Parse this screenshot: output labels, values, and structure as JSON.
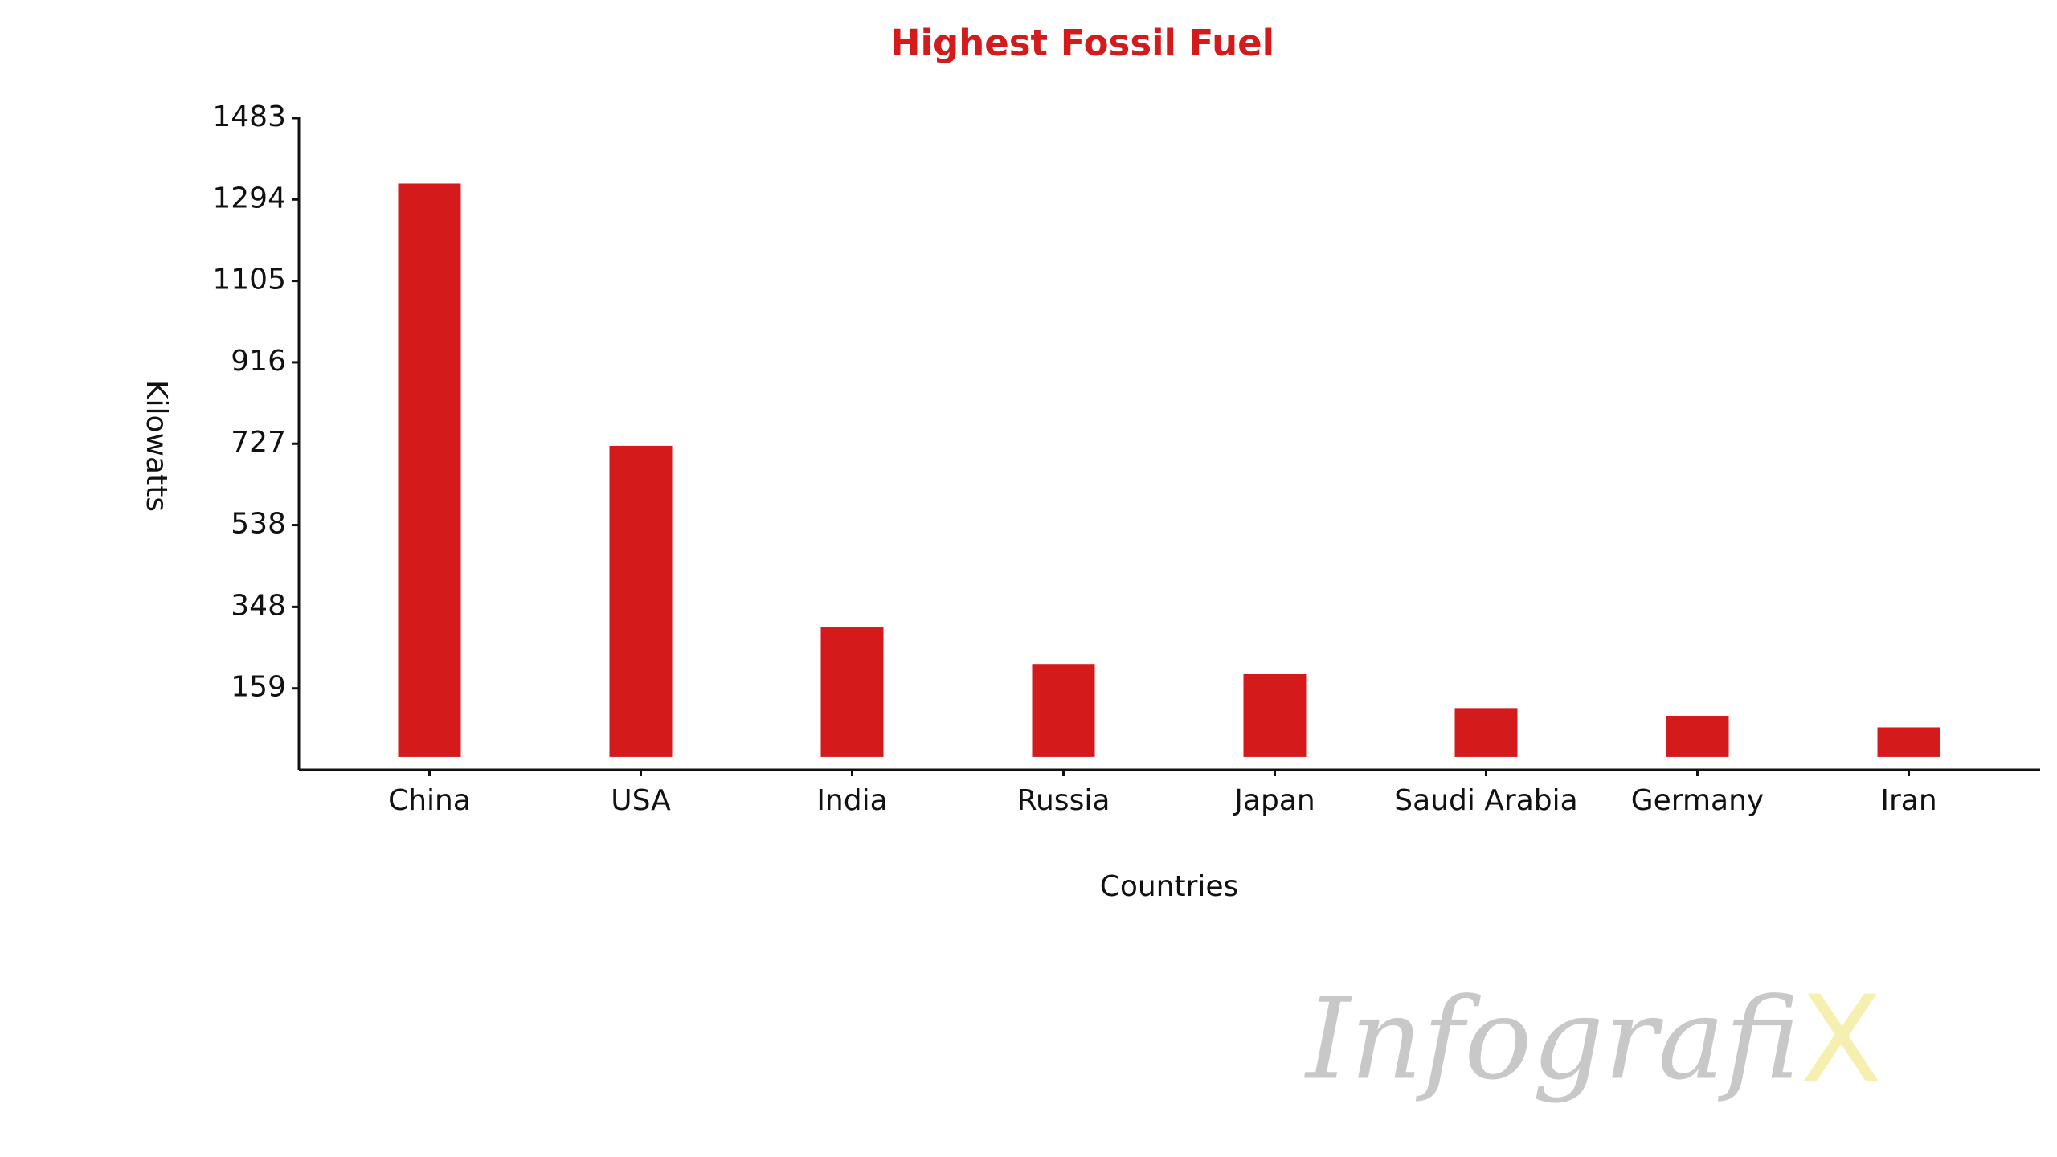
{
  "chart_data": {
    "type": "bar",
    "title": "Highest Fossil Fuel",
    "x_label": "Countries",
    "y_label": "Kilowatts",
    "categories": [
      "China",
      "USA",
      "India",
      "Russia",
      "Japan",
      "Saudi Arabia",
      "Germany",
      "Iran"
    ],
    "values": [
      1331,
      722,
      302,
      214,
      192,
      113,
      95,
      68
    ],
    "color": "#d41a1a",
    "ylim": [
      -30,
      1483
    ],
    "yticks": [
      159,
      348,
      538,
      727,
      916,
      1105,
      1294,
      1483
    ],
    "grid": false
  },
  "watermark": {
    "text": "Infografi",
    "mark": "X"
  }
}
